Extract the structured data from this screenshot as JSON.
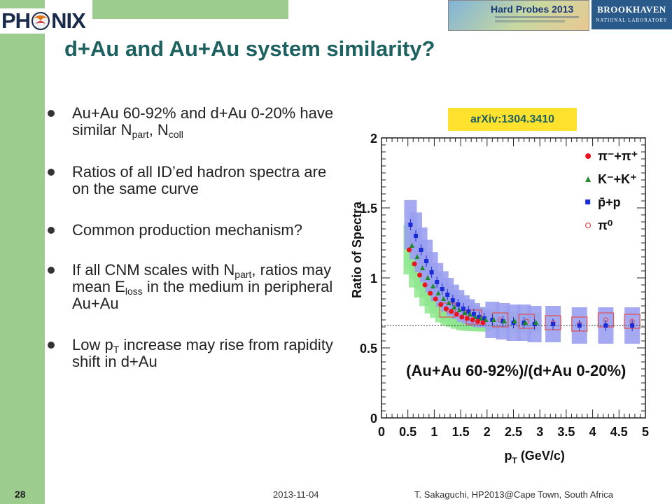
{
  "header": {
    "logo_left": "PH",
    "logo_right": "NIX",
    "conference_title": "Hard Probes 2013",
    "lab_name": "BROOKHAVEN",
    "lab_sub": "NATIONAL LABORATORY"
  },
  "slide": {
    "title": "d+Au and Au+Au system similarity?",
    "bullets": {
      "b1a": "Au+Au 60-92% and d+Au 0-20% have similar N",
      "b1sub1": "part",
      "b1b": ", N",
      "b1sub2": "coll",
      "b2": "Ratios of all ID’ed hadron spectra are on the same curve",
      "b3": "Common production mechanism?",
      "b4a": "If all CNM scales with N",
      "b4sub1": "part",
      "b4b": ", ratios may mean E",
      "b4sub2": "loss",
      "b4c": " in the medium in peripheral Au+Au",
      "b5a": "Low p",
      "b5sub": "T",
      "b5b": " increase may rise from rapidity shift in d+Au"
    },
    "arxiv": "arXiv:1304.3410"
  },
  "footer": {
    "page_number": "28",
    "date": "2013-11-04",
    "author": "T. Sakaguchi, HP2013@Cape Town, South Africa"
  },
  "colors": {
    "sidebar": "#9dcc8f",
    "title": "#1d6060",
    "arxiv_bg": "#ffe22e",
    "pion": "#e8141e",
    "kaon": "#1c8a2a",
    "proton": "#1a2ad8",
    "pi0": "#e05050",
    "band_pion": "#8fe88f",
    "band_kaon": "#9aa0f0"
  },
  "chart_data": {
    "type": "scatter",
    "xlabel_main": "p",
    "xlabel_sub": "T",
    "xlabel_rest": " (GeV/c)",
    "ylabel": "Ratio of Spectra",
    "annotation": "(Au+Au 60-92%)/(d+Au 0-20%)",
    "xlim": [
      0,
      5
    ],
    "ylim": [
      0,
      2
    ],
    "x_ticks": [
      0,
      0.5,
      1,
      1.5,
      2,
      2.5,
      3,
      3.5,
      4,
      4.5,
      5
    ],
    "x_tick_labels": [
      "0",
      "0.5",
      "1",
      "1.5",
      "2",
      "2.5",
      "3",
      "3.5",
      "4",
      "4.5",
      "5"
    ],
    "y_ticks": [
      0,
      0.5,
      1,
      1.5,
      2
    ],
    "y_tick_labels": [
      "0",
      "0.5",
      "1",
      "1.5",
      "2"
    ],
    "reference_line": 0.66,
    "legend": [
      "π⁻+π⁺",
      "K⁻+K⁺",
      "p̄+p",
      "π⁰"
    ],
    "series": [
      {
        "name": "π⁻+π⁺",
        "marker": "circle",
        "x": [
          0.55,
          0.65,
          0.75,
          0.85,
          0.95,
          1.05,
          1.15,
          1.25,
          1.35,
          1.45,
          1.55,
          1.65,
          1.75,
          1.85,
          1.95
        ],
        "y": [
          1.2,
          1.1,
          1.02,
          0.95,
          0.89,
          0.85,
          0.81,
          0.78,
          0.76,
          0.74,
          0.72,
          0.71,
          0.7,
          0.69,
          0.68
        ]
      },
      {
        "name": "K⁻+K⁺",
        "marker": "triangle",
        "x": [
          0.55,
          0.65,
          0.75,
          0.85,
          0.95,
          1.05,
          1.15,
          1.25,
          1.35,
          1.45,
          1.55,
          1.65,
          1.75,
          1.85,
          1.95,
          2.1,
          2.3,
          2.5,
          2.7,
          2.9
        ],
        "y": [
          1.23,
          1.15,
          1.07,
          1.0,
          0.94,
          0.89,
          0.85,
          0.82,
          0.79,
          0.77,
          0.75,
          0.74,
          0.72,
          0.71,
          0.7,
          0.7,
          0.69,
          0.69,
          0.68,
          0.68
        ]
      },
      {
        "name": "p̄+p",
        "marker": "square",
        "x": [
          0.55,
          0.65,
          0.75,
          0.85,
          0.95,
          1.05,
          1.15,
          1.25,
          1.35,
          1.45,
          1.55,
          1.65,
          1.75,
          1.85,
          1.95,
          2.1,
          2.3,
          2.5,
          2.7,
          2.9,
          3.25,
          3.75,
          4.25,
          4.75
        ],
        "y": [
          1.38,
          1.3,
          1.2,
          1.12,
          1.04,
          0.97,
          0.92,
          0.88,
          0.84,
          0.81,
          0.78,
          0.76,
          0.74,
          0.72,
          0.71,
          0.7,
          0.69,
          0.68,
          0.68,
          0.67,
          0.67,
          0.66,
          0.66,
          0.66
        ]
      },
      {
        "name": "π⁰",
        "marker": "open-circle",
        "x": [
          1.25,
          1.75,
          2.25,
          2.75,
          3.25,
          3.75,
          4.25,
          4.75
        ],
        "y": [
          0.77,
          0.72,
          0.7,
          0.69,
          0.68,
          0.67,
          0.7,
          0.69
        ]
      }
    ]
  }
}
